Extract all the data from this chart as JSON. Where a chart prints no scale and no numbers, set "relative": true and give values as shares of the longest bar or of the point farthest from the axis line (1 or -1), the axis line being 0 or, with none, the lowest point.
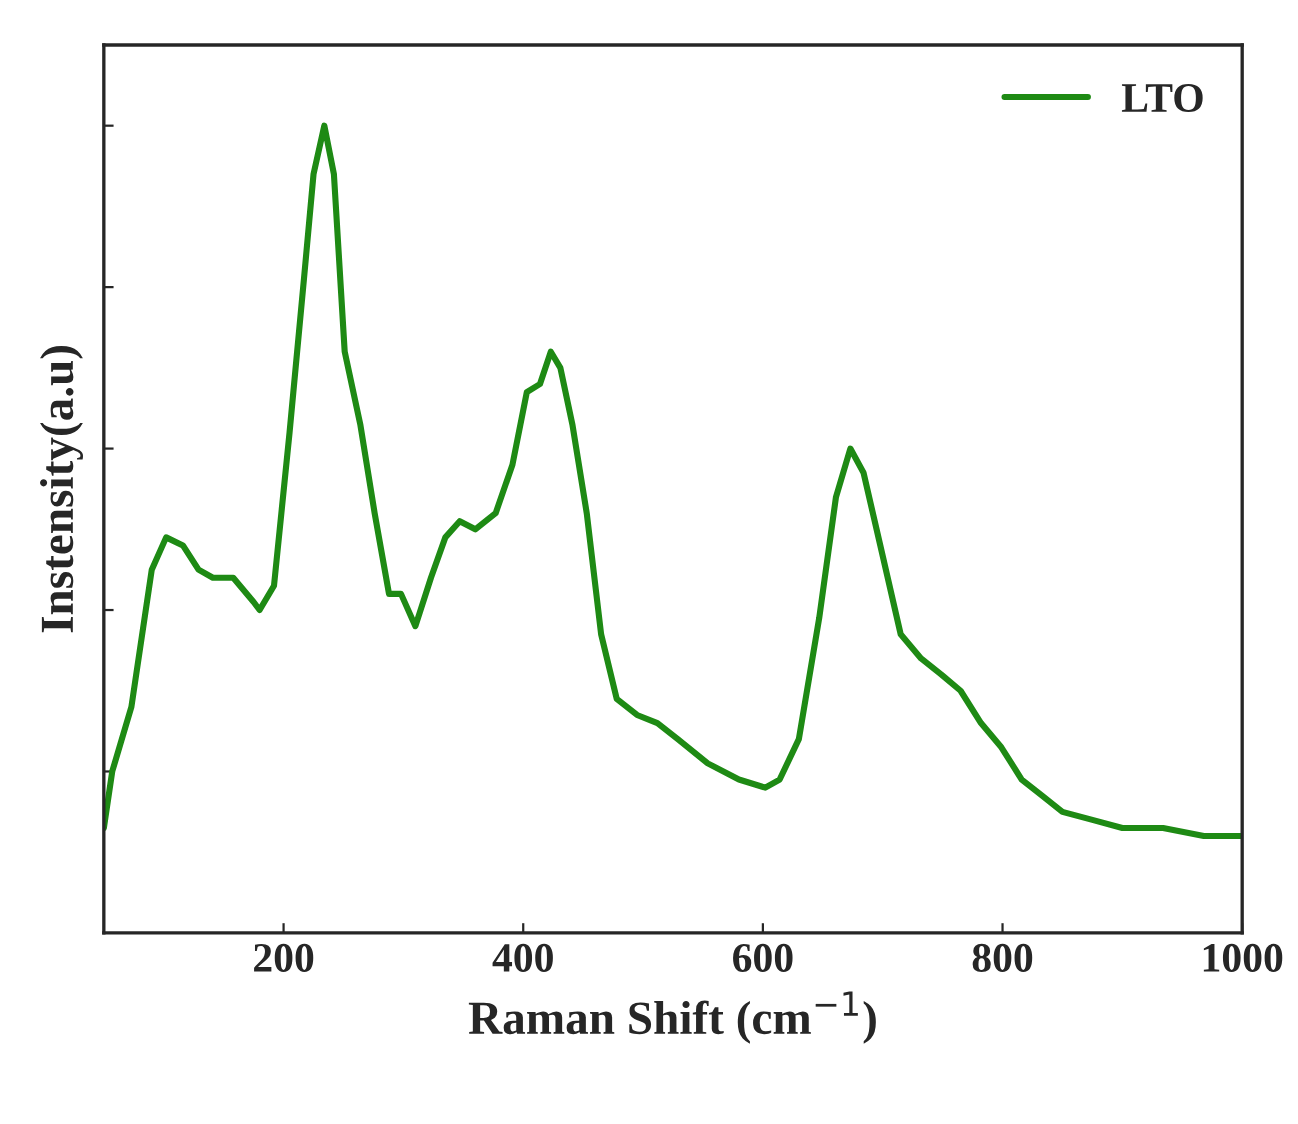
{
  "chart_data": {
    "type": "line",
    "xlabel": "Raman Shift (cm$^{−1}$)",
    "ylabel": "Instensity(a.u)",
    "relative": true,
    "xlim": [
      50,
      1000
    ],
    "xticks": [
      200,
      400,
      600,
      800,
      1000
    ],
    "legend": "top right",
    "grid": false,
    "x": [
      50,
      57,
      73,
      90,
      102,
      116,
      129,
      141,
      158,
      175,
      180,
      192,
      205,
      217,
      225,
      234,
      242,
      251,
      264,
      276,
      288,
      298,
      310,
      323,
      335,
      347,
      360,
      377,
      391,
      403,
      414,
      423,
      431,
      441,
      453,
      465,
      478,
      495,
      512,
      529,
      554,
      580,
      602,
      614,
      630,
      647,
      661,
      673,
      684,
      698,
      715,
      732,
      749,
      765,
      782,
      799,
      816,
      833,
      850,
      875,
      900,
      934,
      968,
      1000
    ],
    "series": [
      {
        "name": "LTO",
        "color": "#1e8a14",
        "values": [
          0.13,
          0.2,
          0.28,
          0.45,
          0.49,
          0.48,
          0.45,
          0.44,
          0.44,
          0.41,
          0.4,
          0.43,
          0.62,
          0.81,
          0.94,
          1.0,
          0.94,
          0.72,
          0.63,
          0.52,
          0.42,
          0.42,
          0.38,
          0.44,
          0.49,
          0.51,
          0.5,
          0.52,
          0.58,
          0.67,
          0.68,
          0.72,
          0.7,
          0.63,
          0.52,
          0.37,
          0.29,
          0.27,
          0.26,
          0.24,
          0.21,
          0.19,
          0.18,
          0.19,
          0.24,
          0.39,
          0.54,
          0.6,
          0.57,
          0.48,
          0.37,
          0.34,
          0.32,
          0.3,
          0.26,
          0.23,
          0.19,
          0.17,
          0.15,
          0.14,
          0.13,
          0.13,
          0.12,
          0.12
        ]
      }
    ]
  }
}
